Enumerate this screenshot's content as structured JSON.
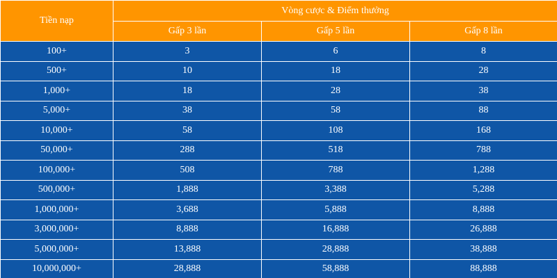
{
  "table": {
    "header_deposit": "Tiền nạp",
    "header_group": "Vòng cược & Điểm thưởng",
    "subheaders": [
      "Gấp 3 lần",
      "Gấp 5 lần",
      "Gấp 8 lần"
    ],
    "rows": [
      [
        "100+",
        "3",
        "6",
        "8"
      ],
      [
        "500+",
        "10",
        "18",
        "28"
      ],
      [
        "1,000+",
        "18",
        "28",
        "38"
      ],
      [
        "5,000+",
        "38",
        "58",
        "88"
      ],
      [
        "10,000+",
        "58",
        "108",
        "168"
      ],
      [
        "50,000+",
        "288",
        "518",
        "788"
      ],
      [
        "100,000+",
        "508",
        "788",
        "1,288"
      ],
      [
        "500,000+",
        "1,888",
        "3,388",
        "5,288"
      ],
      [
        "1,000,000+",
        "3,688",
        "5,888",
        "8,888"
      ],
      [
        "3,000,000+",
        "8,888",
        "16,888",
        "26,888"
      ],
      [
        "5,000,000+",
        "13,888",
        "28,888",
        "38,888"
      ],
      [
        "10,000,000+",
        "28,888",
        "58,888",
        "88,888"
      ]
    ]
  },
  "colors": {
    "header_bg": "#ff9500",
    "body_bg": "#0f56a6",
    "text": "#ffffff"
  }
}
